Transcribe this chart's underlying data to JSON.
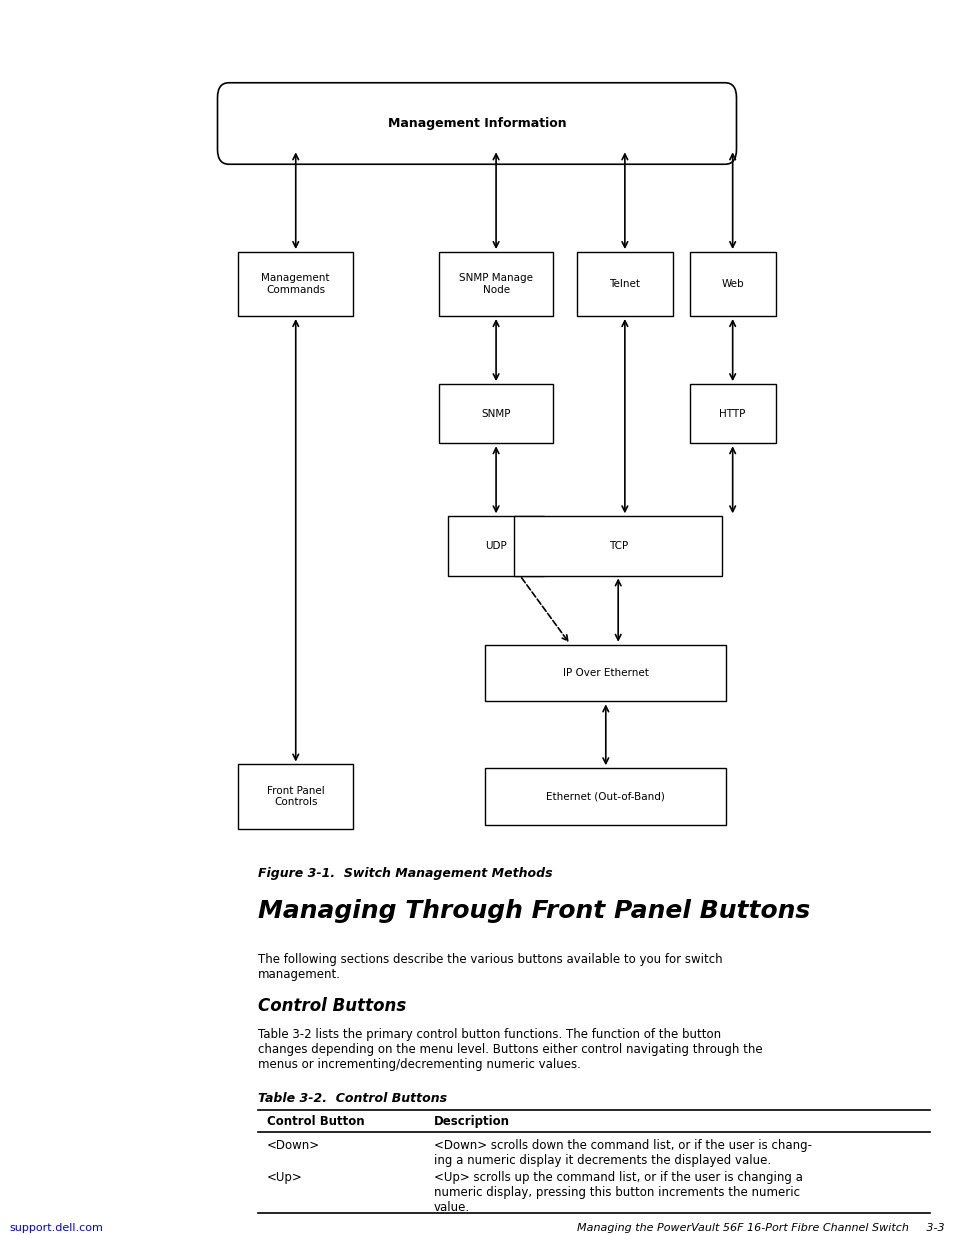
{
  "page_bg": "#ffffff",
  "figure_caption": "Figure 3-1.  Switch Management Methods",
  "main_title": "Managing Through Front Panel Buttons",
  "intro_text": "The following sections describe the various buttons available to you for switch\nmanagement.",
  "section_title": "Control Buttons",
  "section_body": "Table 3-2 lists the primary control button functions. The function of the button\nchanges depending on the menu level. Buttons either control navigating through the\nmenus or incrementing/decrementing numeric values.",
  "table_title": "Table 3-2.  Control Buttons",
  "table_col1_header": "Control Button",
  "table_col2_header": "Description",
  "table_rows": [
    {
      "col1": "<Down>",
      "col2": "<Down> scrolls down the command list, or if the user is chang-\ning a numeric display it decrements the displayed value."
    },
    {
      "col1": "<Up>",
      "col2": "<Up> scrolls up the command list, or if the user is changing a\nnumeric display, pressing this button increments the numeric\nvalue."
    }
  ],
  "footer_left": "support.dell.com",
  "footer_right": "Managing the PowerVault 56F 16-Port Fibre Channel Switch     3-3"
}
